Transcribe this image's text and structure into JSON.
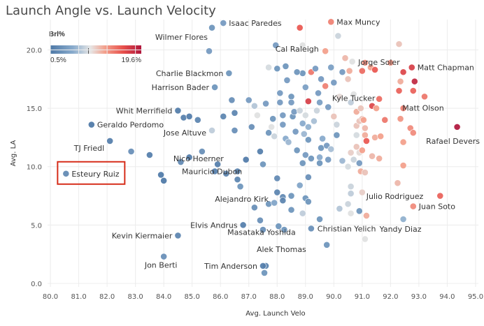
{
  "chart_data": {
    "type": "scatter",
    "title": "Launch Angle vs. Launch Velocity",
    "xlabel": "Avg. Launch Velo",
    "ylabel": "Avg. LA",
    "xlim": [
      79.9,
      95.1
    ],
    "ylim": [
      -0.3,
      22.6
    ],
    "xticks": [
      "80.0",
      "81.0",
      "82.0",
      "83.0",
      "84.0",
      "85.0",
      "86.0",
      "87.0",
      "88.0",
      "89.0",
      "90.0",
      "91.0",
      "92.0",
      "93.0",
      "94.0",
      "95.0"
    ],
    "yticks": [
      "0.0",
      "5.0",
      "10.0",
      "15.0",
      "20.0"
    ],
    "color_legend": {
      "title": "Brl%",
      "min_label": "0.5%",
      "max_label": "19.6%",
      "min": 0.5,
      "max": 19.6
    },
    "highlight": "Esteury Ruiz",
    "points": [
      {
        "x": 80.55,
        "y": 9.4,
        "brl": 2.0,
        "label": "Esteury Ruiz"
      },
      {
        "x": 81.45,
        "y": 13.6,
        "brl": 0.5,
        "label": "Geraldo Perdomo"
      },
      {
        "x": 82.1,
        "y": 12.2,
        "brl": 1.0,
        "label": "TJ Friedl"
      },
      {
        "x": 82.85,
        "y": 11.3,
        "brl": 2.5,
        "label": ""
      },
      {
        "x": 83.5,
        "y": 11.0,
        "brl": 1.0,
        "label": ""
      },
      {
        "x": 83.9,
        "y": 9.3,
        "brl": 0.6,
        "label": ""
      },
      {
        "x": 84.0,
        "y": 8.8,
        "brl": 0.5,
        "label": ""
      },
      {
        "x": 84.0,
        "y": 2.3,
        "brl": 2.5,
        "label": "Jon Berti"
      },
      {
        "x": 84.5,
        "y": 4.1,
        "brl": 1.5,
        "label": "Kevin Kiermaier"
      },
      {
        "x": 84.5,
        "y": 14.8,
        "brl": 0.8,
        "label": "Whit Merrifield"
      },
      {
        "x": 84.7,
        "y": 14.2,
        "brl": 1.0,
        "label": ""
      },
      {
        "x": 84.9,
        "y": 14.3,
        "brl": 0.7,
        "label": ""
      },
      {
        "x": 85.2,
        "y": 14.0,
        "brl": 1.5,
        "label": ""
      },
      {
        "x": 84.6,
        "y": 10.4,
        "brl": 2.0,
        "label": ""
      },
      {
        "x": 84.9,
        "y": 10.8,
        "brl": 0.8,
        "label": ""
      },
      {
        "x": 85.35,
        "y": 11.3,
        "brl": 2.5,
        "label": "Nico Hoerner"
      },
      {
        "x": 85.7,
        "y": 13.1,
        "brl": 7.5,
        "label": "Jose Altuve"
      },
      {
        "x": 85.6,
        "y": 19.9,
        "brl": 3.5,
        "label": "Wilmer Flores"
      },
      {
        "x": 85.7,
        "y": 21.9,
        "brl": 3.0,
        "label": ""
      },
      {
        "x": 86.1,
        "y": 22.3,
        "brl": 3.5,
        "label": "Isaac Paredes"
      },
      {
        "x": 85.8,
        "y": 16.8,
        "brl": 3.0,
        "label": "Harrison Bader"
      },
      {
        "x": 86.3,
        "y": 18.0,
        "brl": 3.0,
        "label": "Charlie Blackmon"
      },
      {
        "x": 85.8,
        "y": 9.6,
        "brl": 1.0,
        "label": ""
      },
      {
        "x": 85.9,
        "y": 10.2,
        "brl": 1.0,
        "label": "Mauricio Dubon"
      },
      {
        "x": 86.1,
        "y": 14.3,
        "brl": 1.5,
        "label": ""
      },
      {
        "x": 86.2,
        "y": 9.4,
        "brl": 1.5,
        "label": ""
      },
      {
        "x": 86.4,
        "y": 15.7,
        "brl": 2.5,
        "label": ""
      },
      {
        "x": 86.5,
        "y": 14.6,
        "brl": 1.5,
        "label": ""
      },
      {
        "x": 86.5,
        "y": 13.1,
        "brl": 2.5,
        "label": ""
      },
      {
        "x": 86.6,
        "y": 9.6,
        "brl": 1.5,
        "label": ""
      },
      {
        "x": 86.6,
        "y": 8.9,
        "brl": 1.5,
        "label": ""
      },
      {
        "x": 86.7,
        "y": 8.3,
        "brl": 3.0,
        "label": "Alejandro Kirk"
      },
      {
        "x": 86.8,
        "y": 5.0,
        "brl": 1.0,
        "label": "Elvis Andrus"
      },
      {
        "x": 86.9,
        "y": 10.6,
        "brl": 0.7,
        "label": ""
      },
      {
        "x": 87.0,
        "y": 15.7,
        "brl": 3.5,
        "label": ""
      },
      {
        "x": 87.1,
        "y": 13.4,
        "brl": 2.5,
        "label": ""
      },
      {
        "x": 87.2,
        "y": 15.2,
        "brl": 7.0,
        "label": ""
      },
      {
        "x": 87.3,
        "y": 14.4,
        "brl": 9.0,
        "label": ""
      },
      {
        "x": 87.4,
        "y": 11.3,
        "brl": 1.0,
        "label": ""
      },
      {
        "x": 87.5,
        "y": 10.2,
        "brl": 3.0,
        "label": ""
      },
      {
        "x": 87.6,
        "y": 15.4,
        "brl": 3.5,
        "label": ""
      },
      {
        "x": 87.2,
        "y": 6.5,
        "brl": 2.5,
        "label": ""
      },
      {
        "x": 87.4,
        "y": 5.4,
        "brl": 2.5,
        "label": "Masataka Yoshida"
      },
      {
        "x": 87.5,
        "y": 4.6,
        "brl": 2.5,
        "label": ""
      },
      {
        "x": 87.7,
        "y": 6.8,
        "brl": 3.0,
        "label": ""
      },
      {
        "x": 87.7,
        "y": 12.9,
        "brl": 3.0,
        "label": ""
      },
      {
        "x": 87.8,
        "y": 13.4,
        "brl": 9.0,
        "label": ""
      },
      {
        "x": 87.85,
        "y": 14.1,
        "brl": 3.0,
        "label": ""
      },
      {
        "x": 87.9,
        "y": 12.6,
        "brl": 8.0,
        "label": ""
      },
      {
        "x": 88.0,
        "y": 18.4,
        "brl": 3.0,
        "label": ""
      },
      {
        "x": 87.7,
        "y": 18.5,
        "brl": 8.5,
        "label": ""
      },
      {
        "x": 88.1,
        "y": 16.3,
        "brl": 3.5,
        "label": ""
      },
      {
        "x": 88.1,
        "y": 15.5,
        "brl": 3.5,
        "label": ""
      },
      {
        "x": 88.2,
        "y": 14.4,
        "brl": 3.5,
        "label": ""
      },
      {
        "x": 88.2,
        "y": 13.6,
        "brl": 3.5,
        "label": ""
      },
      {
        "x": 87.95,
        "y": 20.4,
        "brl": 3.5,
        "label": ""
      },
      {
        "x": 88.3,
        "y": 18.6,
        "brl": 3.0,
        "label": ""
      },
      {
        "x": 88.35,
        "y": 17.4,
        "brl": 3.5,
        "label": ""
      },
      {
        "x": 88.3,
        "y": 12.4,
        "brl": 5.0,
        "label": ""
      },
      {
        "x": 88.4,
        "y": 12.1,
        "brl": 6.0,
        "label": ""
      },
      {
        "x": 88.5,
        "y": 16.0,
        "brl": 3.0,
        "label": ""
      },
      {
        "x": 88.5,
        "y": 15.5,
        "brl": 3.5,
        "label": ""
      },
      {
        "x": 88.55,
        "y": 14.3,
        "brl": 3.0,
        "label": ""
      },
      {
        "x": 88.6,
        "y": 14.7,
        "brl": 3.5,
        "label": ""
      },
      {
        "x": 88.65,
        "y": 13.0,
        "brl": 3.5,
        "label": ""
      },
      {
        "x": 88.7,
        "y": 11.4,
        "brl": 3.0,
        "label": ""
      },
      {
        "x": 88.0,
        "y": 9.0,
        "brl": 2.0,
        "label": ""
      },
      {
        "x": 88.0,
        "y": 7.8,
        "brl": 1.5,
        "label": ""
      },
      {
        "x": 88.2,
        "y": 7.4,
        "brl": 2.0,
        "label": ""
      },
      {
        "x": 88.2,
        "y": 7.1,
        "brl": 1.5,
        "label": ""
      },
      {
        "x": 87.9,
        "y": 6.9,
        "brl": 4.5,
        "label": ""
      },
      {
        "x": 88.05,
        "y": 4.9,
        "brl": 3.0,
        "label": ""
      },
      {
        "x": 88.25,
        "y": 4.6,
        "brl": 3.0,
        "label": "Alek Thomas"
      },
      {
        "x": 87.6,
        "y": 1.5,
        "brl": 1.5,
        "label": ""
      },
      {
        "x": 87.5,
        "y": 1.5,
        "brl": 1.0,
        "label": "Tim Anderson"
      },
      {
        "x": 87.55,
        "y": 0.9,
        "brl": 3.0,
        "label": ""
      },
      {
        "x": 88.5,
        "y": 7.5,
        "brl": 3.0,
        "label": ""
      },
      {
        "x": 88.9,
        "y": 6.0,
        "brl": 7.5,
        "label": ""
      },
      {
        "x": 88.9,
        "y": 18.0,
        "brl": 3.0,
        "label": ""
      },
      {
        "x": 88.7,
        "y": 18.1,
        "brl": 3.0,
        "label": ""
      },
      {
        "x": 88.8,
        "y": 21.9,
        "brl": 15.5,
        "label": ""
      },
      {
        "x": 88.9,
        "y": 20.4,
        "brl": 9.0,
        "label": "Cal Raleigh"
      },
      {
        "x": 89.2,
        "y": 18.1,
        "brl": 14.0,
        "label": ""
      },
      {
        "x": 89.1,
        "y": 15.6,
        "brl": 17.0,
        "label": ""
      },
      {
        "x": 89.0,
        "y": 16.8,
        "brl": 4.0,
        "label": ""
      },
      {
        "x": 88.8,
        "y": 14.8,
        "brl": 8.0,
        "label": ""
      },
      {
        "x": 89.0,
        "y": 14.4,
        "brl": 8.5,
        "label": ""
      },
      {
        "x": 88.9,
        "y": 13.7,
        "brl": 5.0,
        "label": ""
      },
      {
        "x": 89.1,
        "y": 13.4,
        "brl": 5.5,
        "label": ""
      },
      {
        "x": 88.95,
        "y": 12.8,
        "brl": 6.0,
        "label": ""
      },
      {
        "x": 89.1,
        "y": 12.3,
        "brl": 3.0,
        "label": ""
      },
      {
        "x": 89.3,
        "y": 13.9,
        "brl": 6.5,
        "label": ""
      },
      {
        "x": 89.4,
        "y": 14.8,
        "brl": 8.0,
        "label": ""
      },
      {
        "x": 89.45,
        "y": 16.3,
        "brl": 3.5,
        "label": ""
      },
      {
        "x": 89.5,
        "y": 15.5,
        "brl": 4.0,
        "label": ""
      },
      {
        "x": 89.35,
        "y": 18.4,
        "brl": 3.5,
        "label": ""
      },
      {
        "x": 89.55,
        "y": 17.5,
        "brl": 3.5,
        "label": ""
      },
      {
        "x": 89.7,
        "y": 19.9,
        "brl": 12.0,
        "label": ""
      },
      {
        "x": 89.9,
        "y": 22.4,
        "brl": 13.5,
        "label": "Max Muncy"
      },
      {
        "x": 90.15,
        "y": 21.2,
        "brl": 8.0,
        "label": ""
      },
      {
        "x": 89.9,
        "y": 18.5,
        "brl": 4.0,
        "label": ""
      },
      {
        "x": 89.7,
        "y": 16.9,
        "brl": 13.5,
        "label": ""
      },
      {
        "x": 89.8,
        "y": 15.1,
        "brl": 3.5,
        "label": ""
      },
      {
        "x": 90.0,
        "y": 14.3,
        "brl": 10.5,
        "label": ""
      },
      {
        "x": 90.1,
        "y": 13.6,
        "brl": 8.0,
        "label": ""
      },
      {
        "x": 90.2,
        "y": 16.0,
        "brl": 9.5,
        "label": ""
      },
      {
        "x": 90.0,
        "y": 17.2,
        "brl": 3.5,
        "label": ""
      },
      {
        "x": 90.3,
        "y": 18.1,
        "brl": 3.5,
        "label": ""
      },
      {
        "x": 90.5,
        "y": 17.5,
        "brl": 10.5,
        "label": ""
      },
      {
        "x": 90.4,
        "y": 19.3,
        "brl": 11.0,
        "label": ""
      },
      {
        "x": 90.55,
        "y": 18.2,
        "brl": 11.5,
        "label": ""
      },
      {
        "x": 90.65,
        "y": 19.0,
        "brl": 9.0,
        "label": ""
      },
      {
        "x": 90.1,
        "y": 12.7,
        "brl": 3.0,
        "label": ""
      },
      {
        "x": 89.6,
        "y": 12.4,
        "brl": 5.0,
        "label": ""
      },
      {
        "x": 89.55,
        "y": 11.6,
        "brl": 3.0,
        "label": ""
      },
      {
        "x": 89.75,
        "y": 11.8,
        "brl": 3.5,
        "label": ""
      },
      {
        "x": 89.9,
        "y": 11.5,
        "brl": 6.5,
        "label": ""
      },
      {
        "x": 89.5,
        "y": 10.8,
        "brl": 5.0,
        "label": ""
      },
      {
        "x": 89.8,
        "y": 10.6,
        "brl": 3.5,
        "label": ""
      },
      {
        "x": 89.5,
        "y": 10.3,
        "brl": 3.0,
        "label": ""
      },
      {
        "x": 89.0,
        "y": 11.0,
        "brl": 3.5,
        "label": ""
      },
      {
        "x": 89.2,
        "y": 10.7,
        "brl": 3.0,
        "label": ""
      },
      {
        "x": 88.9,
        "y": 10.3,
        "brl": 3.0,
        "label": ""
      },
      {
        "x": 89.1,
        "y": 9.1,
        "brl": 2.5,
        "label": ""
      },
      {
        "x": 89.0,
        "y": 7.3,
        "brl": 3.0,
        "label": ""
      },
      {
        "x": 88.8,
        "y": 8.4,
        "brl": 4.5,
        "label": ""
      },
      {
        "x": 89.1,
        "y": 7.0,
        "brl": 3.0,
        "label": ""
      },
      {
        "x": 88.5,
        "y": 6.3,
        "brl": 3.0,
        "label": ""
      },
      {
        "x": 89.5,
        "y": 5.5,
        "brl": 3.0,
        "label": ""
      },
      {
        "x": 89.2,
        "y": 4.7,
        "brl": 2.5,
        "label": ""
      },
      {
        "x": 89.75,
        "y": 3.3,
        "brl": 3.0,
        "label": ""
      },
      {
        "x": 90.3,
        "y": 10.5,
        "brl": 6.0,
        "label": ""
      },
      {
        "x": 90.5,
        "y": 10.0,
        "brl": 8.5,
        "label": ""
      },
      {
        "x": 90.6,
        "y": 8.3,
        "brl": 8.0,
        "label": ""
      },
      {
        "x": 90.6,
        "y": 7.7,
        "brl": 7.5,
        "label": ""
      },
      {
        "x": 90.5,
        "y": 6.8,
        "brl": 8.0,
        "label": ""
      },
      {
        "x": 90.6,
        "y": 6.0,
        "brl": 9.0,
        "label": "Christian Yelich"
      },
      {
        "x": 90.2,
        "y": 6.4,
        "brl": 7.0,
        "label": ""
      },
      {
        "x": 90.8,
        "y": 12.7,
        "brl": 8.5,
        "label": ""
      },
      {
        "x": 90.6,
        "y": 11.2,
        "brl": 10.0,
        "label": ""
      },
      {
        "x": 90.9,
        "y": 11.2,
        "brl": 9.5,
        "label": ""
      },
      {
        "x": 90.7,
        "y": 10.6,
        "brl": 8.0,
        "label": ""
      },
      {
        "x": 90.8,
        "y": 13.5,
        "brl": 10.5,
        "label": ""
      },
      {
        "x": 90.9,
        "y": 13.9,
        "brl": 10.5,
        "label": ""
      },
      {
        "x": 90.8,
        "y": 14.7,
        "brl": 11.5,
        "label": ""
      },
      {
        "x": 90.95,
        "y": 15.0,
        "brl": 10.5,
        "label": ""
      },
      {
        "x": 90.6,
        "y": 15.5,
        "brl": 7.5,
        "label": "Kyle Tucker"
      },
      {
        "x": 90.7,
        "y": 16.2,
        "brl": 9.0,
        "label": ""
      },
      {
        "x": 91.0,
        "y": 14.1,
        "brl": 10.5,
        "label": ""
      },
      {
        "x": 91.05,
        "y": 14.0,
        "brl": 12.0,
        "label": ""
      },
      {
        "x": 91.1,
        "y": 13.3,
        "brl": 11.0,
        "label": ""
      },
      {
        "x": 91.1,
        "y": 12.7,
        "brl": 11.5,
        "label": ""
      },
      {
        "x": 91.15,
        "y": 12.2,
        "brl": 15.5,
        "label": ""
      },
      {
        "x": 90.8,
        "y": 11.7,
        "brl": 10.5,
        "label": ""
      },
      {
        "x": 91.0,
        "y": 11.4,
        "brl": 12.0,
        "label": ""
      },
      {
        "x": 90.9,
        "y": 10.3,
        "brl": 3.5,
        "label": ""
      },
      {
        "x": 90.95,
        "y": 9.6,
        "brl": 11.5,
        "label": ""
      },
      {
        "x": 91.1,
        "y": 9.5,
        "brl": 10.5,
        "label": ""
      },
      {
        "x": 91.0,
        "y": 7.8,
        "brl": 10.0,
        "label": ""
      },
      {
        "x": 90.9,
        "y": 6.2,
        "brl": 3.0,
        "label": ""
      },
      {
        "x": 91.15,
        "y": 5.8,
        "brl": 11.5,
        "label": ""
      },
      {
        "x": 91.1,
        "y": 3.8,
        "brl": 9.0,
        "label": ""
      },
      {
        "x": 91.0,
        "y": 18.2,
        "brl": 14.5,
        "label": ""
      },
      {
        "x": 91.1,
        "y": 18.9,
        "brl": 13.0,
        "label": "Jorge Soler"
      },
      {
        "x": 91.3,
        "y": 18.5,
        "brl": 12.0,
        "label": ""
      },
      {
        "x": 91.35,
        "y": 15.2,
        "brl": 16.5,
        "label": ""
      },
      {
        "x": 91.5,
        "y": 15.0,
        "brl": 12.0,
        "label": ""
      },
      {
        "x": 91.6,
        "y": 15.8,
        "brl": 14.5,
        "label": ""
      },
      {
        "x": 91.45,
        "y": 18.3,
        "brl": 15.5,
        "label": ""
      },
      {
        "x": 91.45,
        "y": 12.5,
        "brl": 11.5,
        "label": ""
      },
      {
        "x": 91.65,
        "y": 12.6,
        "brl": 12.0,
        "label": ""
      },
      {
        "x": 91.8,
        "y": 14.0,
        "brl": 14.0,
        "label": ""
      },
      {
        "x": 91.35,
        "y": 10.9,
        "brl": 11.0,
        "label": ""
      },
      {
        "x": 91.6,
        "y": 10.7,
        "brl": 11.5,
        "label": ""
      },
      {
        "x": 92.0,
        "y": 18.9,
        "brl": 12.5,
        "label": ""
      },
      {
        "x": 92.3,
        "y": 20.5,
        "brl": 10.5,
        "label": ""
      },
      {
        "x": 92.3,
        "y": 16.5,
        "brl": 15.0,
        "label": ""
      },
      {
        "x": 92.45,
        "y": 15.0,
        "brl": 13.5,
        "label": ""
      },
      {
        "x": 92.35,
        "y": 17.3,
        "brl": 11.5,
        "label": ""
      },
      {
        "x": 92.35,
        "y": 14.1,
        "brl": 12.5,
        "label": ""
      },
      {
        "x": 92.45,
        "y": 12.1,
        "brl": 12.0,
        "label": ""
      },
      {
        "x": 92.45,
        "y": 10.1,
        "brl": 12.0,
        "label": ""
      },
      {
        "x": 92.45,
        "y": 18.1,
        "brl": 16.5,
        "label": ""
      },
      {
        "x": 92.7,
        "y": 13.3,
        "brl": 13.0,
        "label": ""
      },
      {
        "x": 92.75,
        "y": 18.5,
        "brl": 17.0,
        "label": "Matt Chapman"
      },
      {
        "x": 92.85,
        "y": 17.3,
        "brl": 18.5,
        "label": ""
      },
      {
        "x": 92.8,
        "y": 16.5,
        "brl": 15.0,
        "label": ""
      },
      {
        "x": 93.2,
        "y": 16.0,
        "brl": 14.0,
        "label": "Matt Olson"
      },
      {
        "x": 92.8,
        "y": 12.9,
        "brl": 13.0,
        "label": ""
      },
      {
        "x": 94.35,
        "y": 13.4,
        "brl": 19.6,
        "label": "Rafael Devers"
      },
      {
        "x": 92.25,
        "y": 8.6,
        "brl": 11.0,
        "label": "Julio Rodriguez"
      },
      {
        "x": 92.8,
        "y": 6.6,
        "brl": 13.0,
        "label": "Juan Soto"
      },
      {
        "x": 93.75,
        "y": 7.5,
        "brl": 15.0,
        "label": ""
      },
      {
        "x": 92.45,
        "y": 5.5,
        "brl": 5.5,
        "label": "Yandy Diaz"
      }
    ]
  }
}
